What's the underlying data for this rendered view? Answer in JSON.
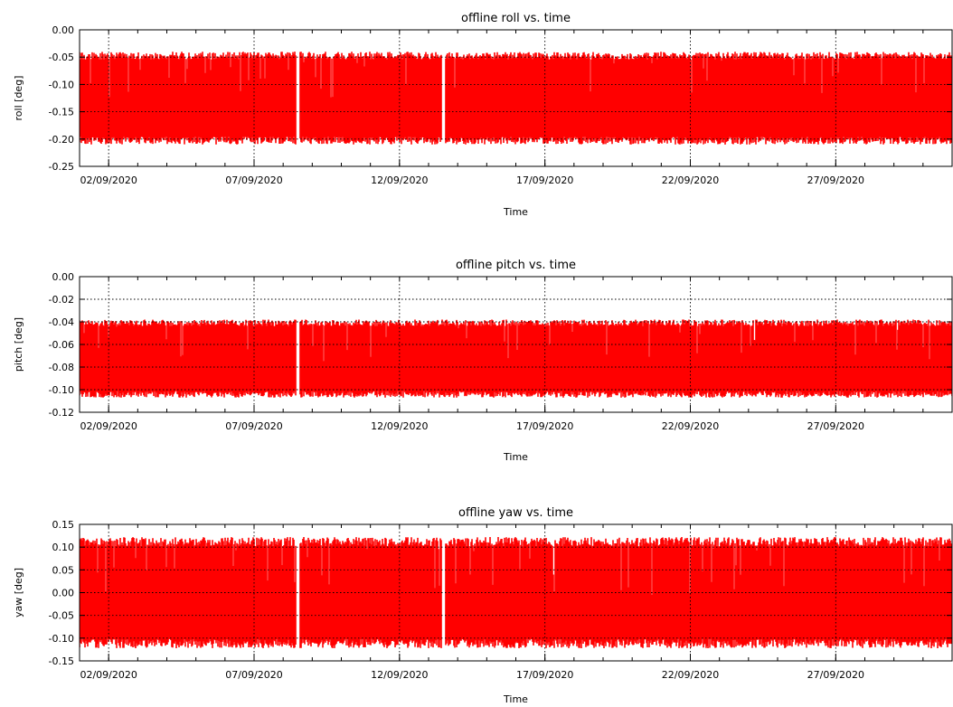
{
  "chart_data": [
    {
      "type": "line",
      "title": "offline roll vs. time",
      "xlabel": "Time",
      "ylabel": "roll [deg]",
      "series_color": "#ff0000",
      "x_ticks": [
        "02/09/2020",
        "07/09/2020",
        "12/09/2020",
        "17/09/2020",
        "22/09/2020",
        "27/09/2020"
      ],
      "y_ticks": [
        "0.00",
        "-0.05",
        "-0.10",
        "-0.15",
        "-0.20",
        "-0.25"
      ],
      "y_tick_values": [
        0.0,
        -0.05,
        -0.1,
        -0.15,
        -0.2,
        -0.25
      ],
      "ylim": [
        -0.25,
        0.0
      ],
      "x_range": [
        "01/09/2020",
        "01/10/2020"
      ],
      "grid": "dotted",
      "signal": {
        "envelope_top": -0.045,
        "envelope_bottom": -0.205,
        "dropouts": [
          "08/09/2020",
          "13/09/2020"
        ]
      }
    },
    {
      "type": "line",
      "title": "offline pitch vs. time",
      "xlabel": "Time",
      "ylabel": "pitch [deg]",
      "series_color": "#ff0000",
      "x_ticks": [
        "02/09/2020",
        "07/09/2020",
        "12/09/2020",
        "17/09/2020",
        "22/09/2020",
        "27/09/2020"
      ],
      "y_ticks": [
        "0.00",
        "-0.02",
        "-0.04",
        "-0.06",
        "-0.08",
        "-0.10",
        "-0.12"
      ],
      "y_tick_values": [
        0.0,
        -0.02,
        -0.04,
        -0.06,
        -0.08,
        -0.1,
        -0.12
      ],
      "ylim": [
        -0.12,
        0.0
      ],
      "x_range": [
        "01/09/2020",
        "01/10/2020"
      ],
      "grid": "dotted",
      "signal": {
        "envelope_top": -0.04,
        "envelope_bottom": -0.105,
        "dropouts": [
          "08/09/2020"
        ]
      }
    },
    {
      "type": "line",
      "title": "offline yaw vs. time",
      "xlabel": "Time",
      "ylabel": "yaw [deg]",
      "series_color": "#ff0000",
      "x_ticks": [
        "02/09/2020",
        "07/09/2020",
        "12/09/2020",
        "17/09/2020",
        "22/09/2020",
        "27/09/2020"
      ],
      "y_ticks": [
        "0.15",
        "0.10",
        "0.05",
        "0.00",
        "-0.05",
        "-0.10",
        "-0.15"
      ],
      "y_tick_values": [
        0.15,
        0.1,
        0.05,
        0.0,
        -0.05,
        -0.1,
        -0.15
      ],
      "ylim": [
        -0.15,
        0.15
      ],
      "x_range": [
        "01/09/2020",
        "01/10/2020"
      ],
      "grid": "dotted",
      "signal": {
        "envelope_top": 0.115,
        "envelope_bottom": -0.115,
        "dropouts": [
          "08/09/2020",
          "13/09/2020"
        ]
      }
    }
  ]
}
